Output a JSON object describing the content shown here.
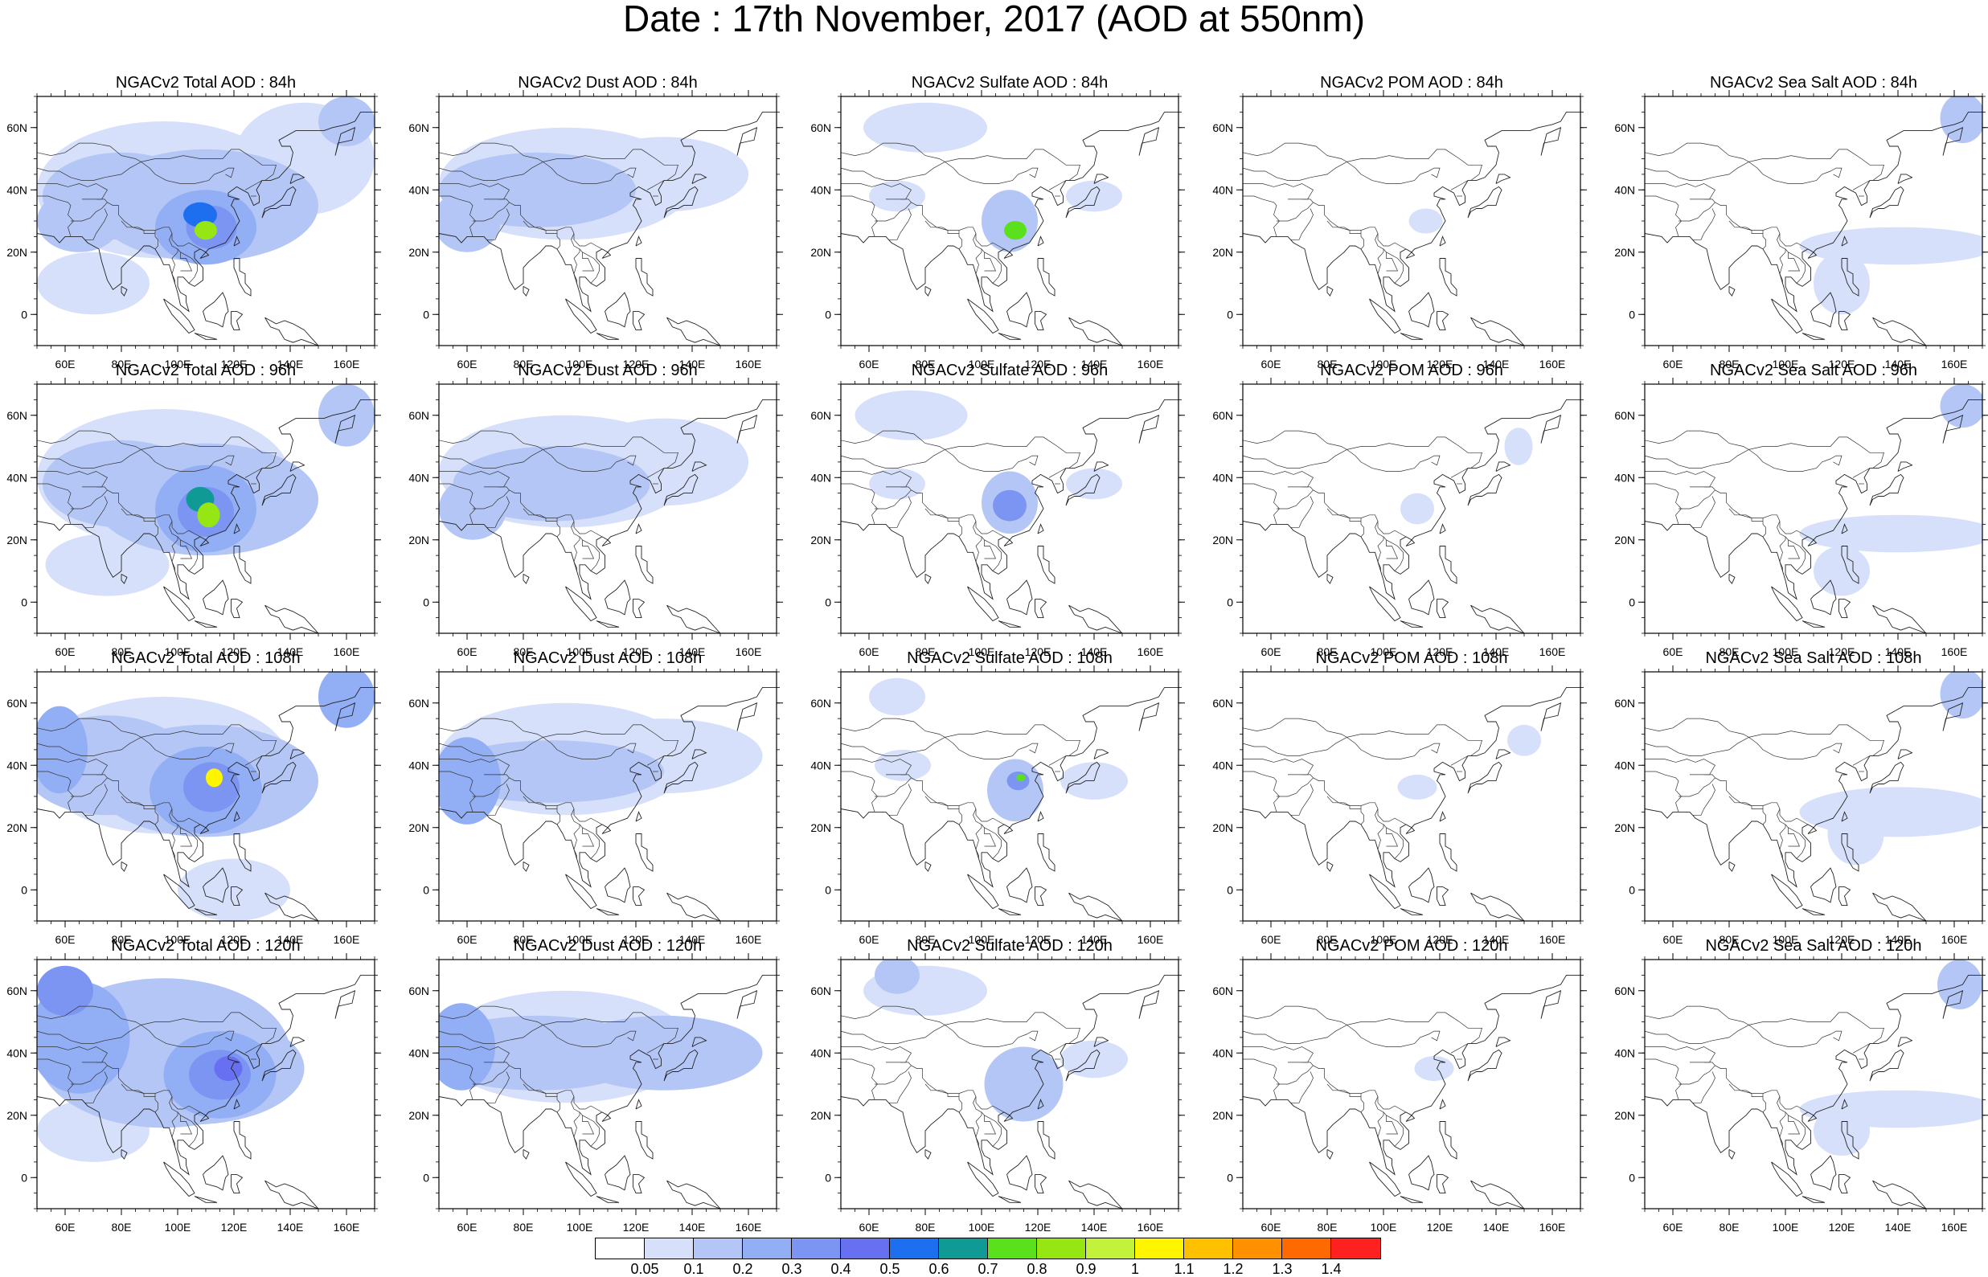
{
  "title": "Date : 17th November, 2017 (AOD at 550nm)",
  "map": {
    "lon_ticks": [
      "60E",
      "80E",
      "100E",
      "120E",
      "140E",
      "160E"
    ],
    "lat_ticks": [
      "60N",
      "40N",
      "20N",
      "0"
    ],
    "lon_range": [
      50,
      170
    ],
    "lat_range": [
      -10,
      70
    ]
  },
  "rows": [
    {
      "lead": "84h",
      "panels": [
        {
          "title": "NGACv2 Total AOD : 84h",
          "species": "total"
        },
        {
          "title": "NGACv2 Dust AOD : 84h",
          "species": "dust"
        },
        {
          "title": "NGACv2 Sulfate AOD : 84h",
          "species": "sulfate"
        },
        {
          "title": "NGACv2 POM AOD : 84h",
          "species": "pom"
        },
        {
          "title": "NGACv2 Sea Salt AOD : 84h",
          "species": "seasalt"
        }
      ]
    },
    {
      "lead": "96h",
      "panels": [
        {
          "title": "NGACv2 Total AOD : 96h",
          "species": "total"
        },
        {
          "title": "NGACv2 Dust AOD : 96h",
          "species": "dust"
        },
        {
          "title": "NGACv2 Sulfate AOD : 96h",
          "species": "sulfate"
        },
        {
          "title": "NGACv2 POM AOD : 96h",
          "species": "pom"
        },
        {
          "title": "NGACv2 Sea Salt AOD : 96h",
          "species": "seasalt"
        }
      ]
    },
    {
      "lead": "108h",
      "panels": [
        {
          "title": "NGACv2 Total AOD : 108h",
          "species": "total"
        },
        {
          "title": "NGACv2 Dust AOD : 108h",
          "species": "dust"
        },
        {
          "title": "NGACv2 Sulfate AOD : 108h",
          "species": "sulfate"
        },
        {
          "title": "NGACv2 POM AOD : 108h",
          "species": "pom"
        },
        {
          "title": "NGACv2 Sea Salt AOD : 108h",
          "species": "seasalt"
        }
      ]
    },
    {
      "lead": "120h",
      "panels": [
        {
          "title": "NGACv2 Total AOD : 120h",
          "species": "total"
        },
        {
          "title": "NGACv2 Dust AOD : 120h",
          "species": "dust"
        },
        {
          "title": "NGACv2 Sulfate AOD : 120h",
          "species": "sulfate"
        },
        {
          "title": "NGACv2 POM AOD : 120h",
          "species": "pom"
        },
        {
          "title": "NGACv2 Sea Salt  AOD : 120h",
          "species": "seasalt"
        }
      ]
    }
  ],
  "colorbar": {
    "labels": [
      "0.05",
      "0.1",
      "0.2",
      "0.3",
      "0.4",
      "0.5",
      "0.6",
      "0.7",
      "0.8",
      "0.9",
      "1",
      "1.1",
      "1.2",
      "1.3",
      "1.4"
    ],
    "colors": [
      "#ffffff",
      "#d6e0fa",
      "#b3c6f5",
      "#92aef4",
      "#7c95f3",
      "#6670f0",
      "#1e6ef0",
      "#0f9a96",
      "#5ae01c",
      "#96e614",
      "#c2f23c",
      "#fff500",
      "#ffc000",
      "#ff9000",
      "#ff6a00",
      "#ff2020"
    ]
  }
}
